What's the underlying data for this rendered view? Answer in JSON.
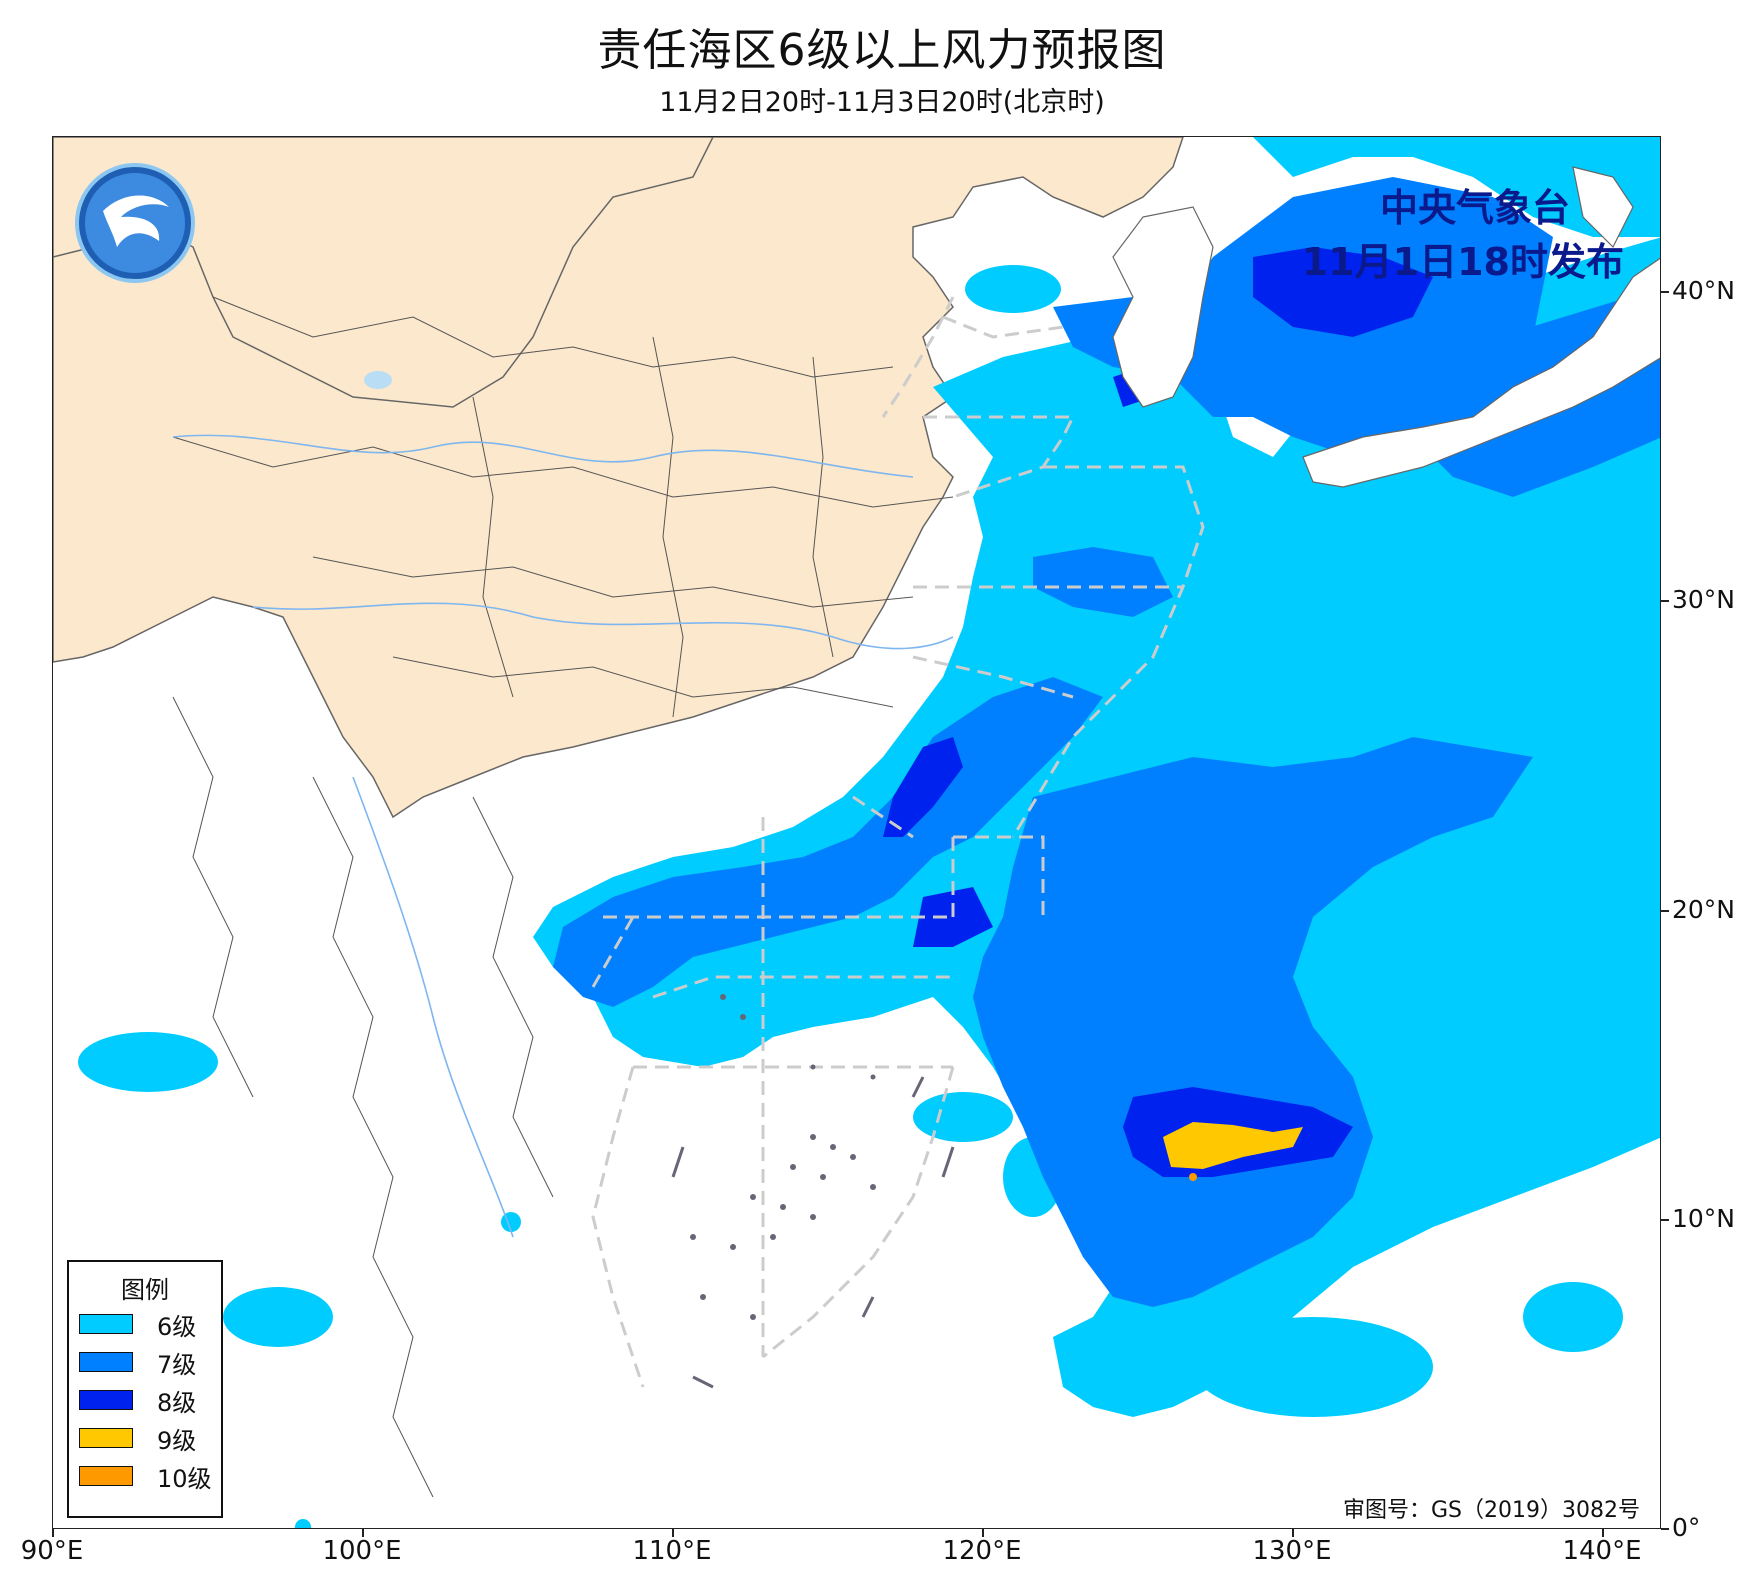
{
  "title": "责任海区6级以上风力预报图",
  "subtitle": "11月2日20时-11月3日20时(北京时)",
  "issuer": {
    "name": "中央气象台",
    "time": "11月1日18时发布"
  },
  "approval": "审图号：GS（2019）3082号",
  "legend": {
    "title": "图例",
    "items": [
      {
        "label": "6级",
        "color": "#00CCFF"
      },
      {
        "label": "7级",
        "color": "#0080FF"
      },
      {
        "label": "8级",
        "color": "#0022EE"
      },
      {
        "label": "9级",
        "color": "#FFC800"
      },
      {
        "label": "10级",
        "color": "#FF9900"
      }
    ]
  },
  "axes": {
    "lat": [
      "40°N",
      "30°N",
      "20°N",
      "10°N",
      "0°"
    ],
    "lon": [
      "90°E",
      "100°E",
      "110°E",
      "120°E",
      "130°E",
      "140°E"
    ]
  },
  "colors": {
    "china_land": "#FCE8CC",
    "border": "#555555",
    "river": "#7EB6F0",
    "zone_line": "#CCCCCC"
  }
}
